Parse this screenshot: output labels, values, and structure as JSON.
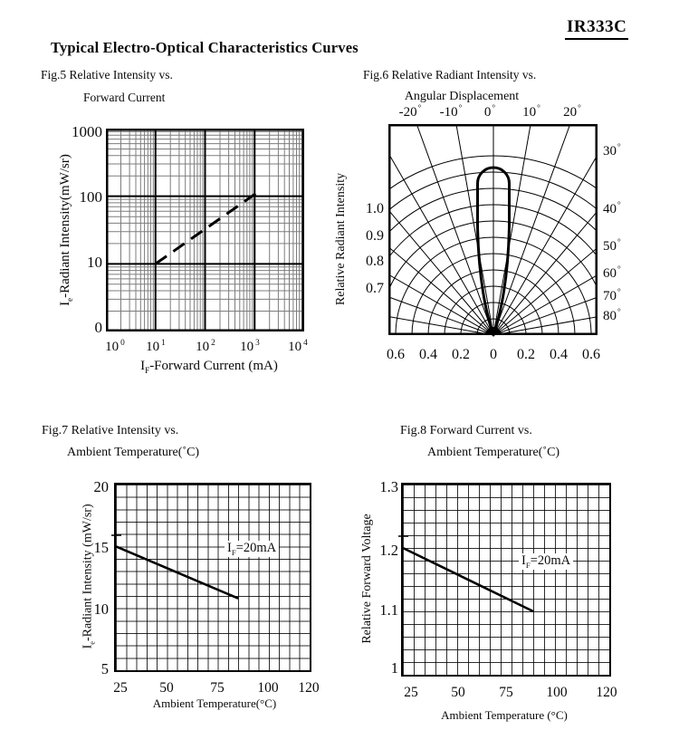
{
  "header": {
    "part_number": "IR333C",
    "title": "Typical Electro-Optical Characteristics Curves"
  },
  "fig5": {
    "caption_line1": "Fig.5 Relative Intensity vs.",
    "caption_line2": "Forward Current",
    "y_axis_title": {
      "pre": "I",
      "sub": "e",
      "post": "-Radiant Intensity(mW/sr)"
    },
    "x_axis_title": {
      "pre": "I",
      "sub": "F",
      "post": "-Forward Current (mA)"
    },
    "y_ticks": [
      "1000",
      "100",
      "10",
      "0"
    ],
    "x_ticks": [
      {
        "base": "10",
        "exp": "0"
      },
      {
        "base": "10",
        "exp": "1"
      },
      {
        "base": "10",
        "exp": "2"
      },
      {
        "base": "10",
        "exp": "3"
      },
      {
        "base": "10",
        "exp": "4"
      }
    ]
  },
  "fig6": {
    "caption_line1": "Fig.6 Relative Radiant Intensity vs.",
    "caption_line2": "Angular Displacement",
    "y_axis_title": "Relative Radiant Intensity",
    "deg": "°",
    "top_ticks": [
      "-20",
      "-10",
      "0",
      "10",
      "20"
    ],
    "right_ticks": [
      "30",
      "40",
      "50",
      "60",
      "70",
      "80"
    ],
    "left_ticks": [
      "1.0",
      "0.9",
      "0.8",
      "0.7"
    ],
    "bottom_ticks": [
      "0.6",
      "0.4",
      "0.2",
      "0",
      "0.2",
      "0.4",
      "0.6"
    ]
  },
  "fig7": {
    "caption_line1": "Fig.7 Relative Intensity vs.",
    "caption_line2": "Ambient Temperature(˚C)",
    "y_axis_title": {
      "pre": "I",
      "sub": "e",
      "post": "-Radiant Intensity (mW/sr)"
    },
    "x_axis_title": "Ambient Temperature(°C)",
    "annotation": {
      "pre": "I",
      "sub": "F",
      "post": "=20mA"
    },
    "y_ticks": [
      "20",
      "15",
      "10",
      "5"
    ],
    "x_ticks": [
      "25",
      "50",
      "75",
      "100",
      "120"
    ]
  },
  "fig8": {
    "caption_line1": "Fig.8 Forward Current vs.",
    "caption_line2": "Ambient Temperature(˚C)",
    "y_axis_title": "Relative Forward Voltage",
    "x_axis_title": "Ambient Temperature (°C)",
    "annotation": {
      "pre": "I",
      "sub": "F",
      "post": "=20mA"
    },
    "y_ticks": [
      "1.3",
      "1.2",
      "1.1",
      "1"
    ],
    "x_ticks": [
      "25",
      "50",
      "75",
      "100",
      "120"
    ]
  },
  "chart_data": [
    {
      "id": "fig5",
      "type": "line",
      "title": "Fig.5 Relative Intensity vs. Forward Current",
      "xlabel": "IF-Forward Current (mA)",
      "ylabel": "Ie-Radiant Intensity(mW/sr)",
      "x_scale": "log",
      "y_scale": "log",
      "xlim": [
        1,
        10000
      ],
      "ylim": [
        1,
        1000
      ],
      "grid": "log minor gridlines every decade (2-9)",
      "series": [
        {
          "name": "radiant intensity",
          "style": "dashed",
          "points": [
            [
              10,
              10
            ],
            [
              1100,
              112
            ]
          ]
        }
      ]
    },
    {
      "id": "fig6",
      "type": "polar-line",
      "title": "Fig.6 Relative Radiant Intensity vs. Angular Displacement",
      "radial_label": "Relative Radiant Intensity",
      "rings": [
        0.1,
        0.2,
        0.3,
        0.4,
        0.5,
        0.6,
        0.7,
        0.8,
        0.9,
        1.0,
        1.1
      ],
      "spoke_angles_deg": [
        -80,
        -70,
        -60,
        -50,
        -40,
        -30,
        -20,
        -10,
        0,
        10,
        20,
        30,
        40,
        50,
        60,
        70,
        80
      ],
      "half_intensity_angle_deg": 10,
      "beam_profile": [
        {
          "angle_deg": -20,
          "r": 0.01
        },
        {
          "angle_deg": -15,
          "r": 0.05
        },
        {
          "angle_deg": -10,
          "r": 0.45
        },
        {
          "angle_deg": -7,
          "r": 0.82
        },
        {
          "angle_deg": -5,
          "r": 0.97
        },
        {
          "angle_deg": 0,
          "r": 1.03
        },
        {
          "angle_deg": 5,
          "r": 0.97
        },
        {
          "angle_deg": 7,
          "r": 0.82
        },
        {
          "angle_deg": 10,
          "r": 0.45
        },
        {
          "angle_deg": 15,
          "r": 0.05
        },
        {
          "angle_deg": 20,
          "r": 0.01
        }
      ]
    },
    {
      "id": "fig7",
      "type": "line",
      "title": "Fig.7 Relative Intensity vs. Ambient Temperature(˚C)",
      "xlabel": "Ambient Temperature(°C)",
      "ylabel": "Ie-Radiant Intensity (mW/sr)",
      "xlim": [
        25,
        120
      ],
      "ylim": [
        5,
        20
      ],
      "x_grid_step": 5,
      "y_grid_step": 1,
      "annotation": "IF=20mA",
      "series": [
        {
          "name": "IF=20mA",
          "points": [
            [
              25,
              15
            ],
            [
              85,
              10.8
            ]
          ]
        }
      ]
    },
    {
      "id": "fig8",
      "type": "line",
      "title": "Fig.8 Forward Current vs. Ambient Temperature(˚C)",
      "xlabel": "Ambient Temperature (°C)",
      "ylabel": "Relative Forward Voltage",
      "xlim": [
        25,
        120
      ],
      "ylim": [
        1.0,
        1.3
      ],
      "x_grid_step": 5,
      "y_grid_step": 0.02,
      "annotation": "IF=20mA",
      "series": [
        {
          "name": "IF=20mA",
          "points": [
            [
              25,
              1.2
            ],
            [
              85,
              1.1
            ]
          ]
        }
      ]
    }
  ]
}
